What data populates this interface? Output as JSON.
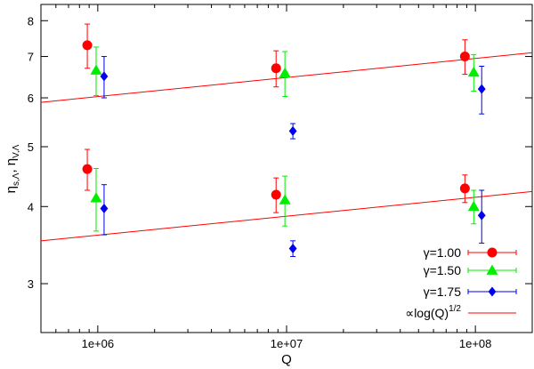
{
  "chart_data": {
    "type": "scatter",
    "xlabel": "Q",
    "xscale": "log",
    "yscale": "log",
    "xlim": [
      500000,
      200000000
    ],
    "ylim": [
      2.5,
      8.5
    ],
    "x_ticks": [
      {
        "value": 1000000,
        "label": "1e+06"
      },
      {
        "value": 10000000,
        "label": "1e+07"
      },
      {
        "value": 100000000,
        "label": "1e+08"
      }
    ],
    "y_ticks": [
      {
        "value": 3,
        "label": "3"
      },
      {
        "value": 4,
        "label": "4"
      },
      {
        "value": 5,
        "label": "5"
      },
      {
        "value": 6,
        "label": "6"
      },
      {
        "value": 7,
        "label": "7"
      },
      {
        "value": 8,
        "label": "8"
      }
    ],
    "ylabel_parts": {
      "eta1": "η",
      "sub1": "s,Λ",
      "sep": ", ",
      "eta2": "η",
      "sub2": "V,Λ"
    },
    "grid": false,
    "legend_position": "bottom-right",
    "series": [
      {
        "name": "γ=1.00",
        "marker": "circle",
        "color": "#ff0000",
        "points": [
          {
            "x": 880000,
            "y": 7.3,
            "err_low": 0.6,
            "err_high": 0.6
          },
          {
            "x": 8800000,
            "y": 6.7,
            "err_low": 0.45,
            "err_high": 0.45
          },
          {
            "x": 88000000,
            "y": 7.0,
            "err_low": 0.45,
            "err_high": 0.45
          },
          {
            "x": 880000,
            "y": 4.6,
            "err_low": 0.35,
            "err_high": 0.35
          },
          {
            "x": 8800000,
            "y": 4.18,
            "err_low": 0.27,
            "err_high": 0.27
          },
          {
            "x": 88000000,
            "y": 4.28,
            "err_low": 0.22,
            "err_high": 0.22
          }
        ]
      },
      {
        "name": "γ=1.50",
        "marker": "triangle",
        "color": "#00ee00",
        "points": [
          {
            "x": 980000,
            "y": 6.65,
            "err_low": 0.6,
            "err_high": 0.6
          },
          {
            "x": 9800000,
            "y": 6.58,
            "err_low": 0.55,
            "err_high": 0.55
          },
          {
            "x": 98000000,
            "y": 6.6,
            "err_low": 0.45,
            "err_high": 0.45
          },
          {
            "x": 980000,
            "y": 4.13,
            "err_low": 0.48,
            "err_high": 0.48
          },
          {
            "x": 9800000,
            "y": 4.1,
            "err_low": 0.38,
            "err_high": 0.38
          },
          {
            "x": 98000000,
            "y": 4.0,
            "err_low": 0.25,
            "err_high": 0.25
          }
        ]
      },
      {
        "name": "γ=1.75",
        "marker": "diamond",
        "color": "#0000ee",
        "points": [
          {
            "x": 1080000,
            "y": 6.5,
            "err_low": 0.5,
            "err_high": 0.5
          },
          {
            "x": 10800000,
            "y": 5.3,
            "err_low": 0.15,
            "err_high": 0.15
          },
          {
            "x": 108000000,
            "y": 6.2,
            "err_low": 0.55,
            "err_high": 0.55
          },
          {
            "x": 1080000,
            "y": 3.97,
            "err_low": 0.37,
            "err_high": 0.37
          },
          {
            "x": 10800000,
            "y": 3.42,
            "err_low": 0.1,
            "err_high": 0.1
          },
          {
            "x": 108000000,
            "y": 3.87,
            "err_low": 0.38,
            "err_high": 0.38
          }
        ]
      }
    ],
    "fit_lines": {
      "name_prefix": "∝log(Q)",
      "name_exponent": "1/2",
      "color": "#ff0000",
      "lines": [
        {
          "x": [
            500000,
            200000000
          ],
          "y": [
            5.9,
            7.1
          ]
        },
        {
          "x": [
            500000,
            200000000
          ],
          "y": [
            3.52,
            4.23
          ]
        }
      ]
    }
  }
}
